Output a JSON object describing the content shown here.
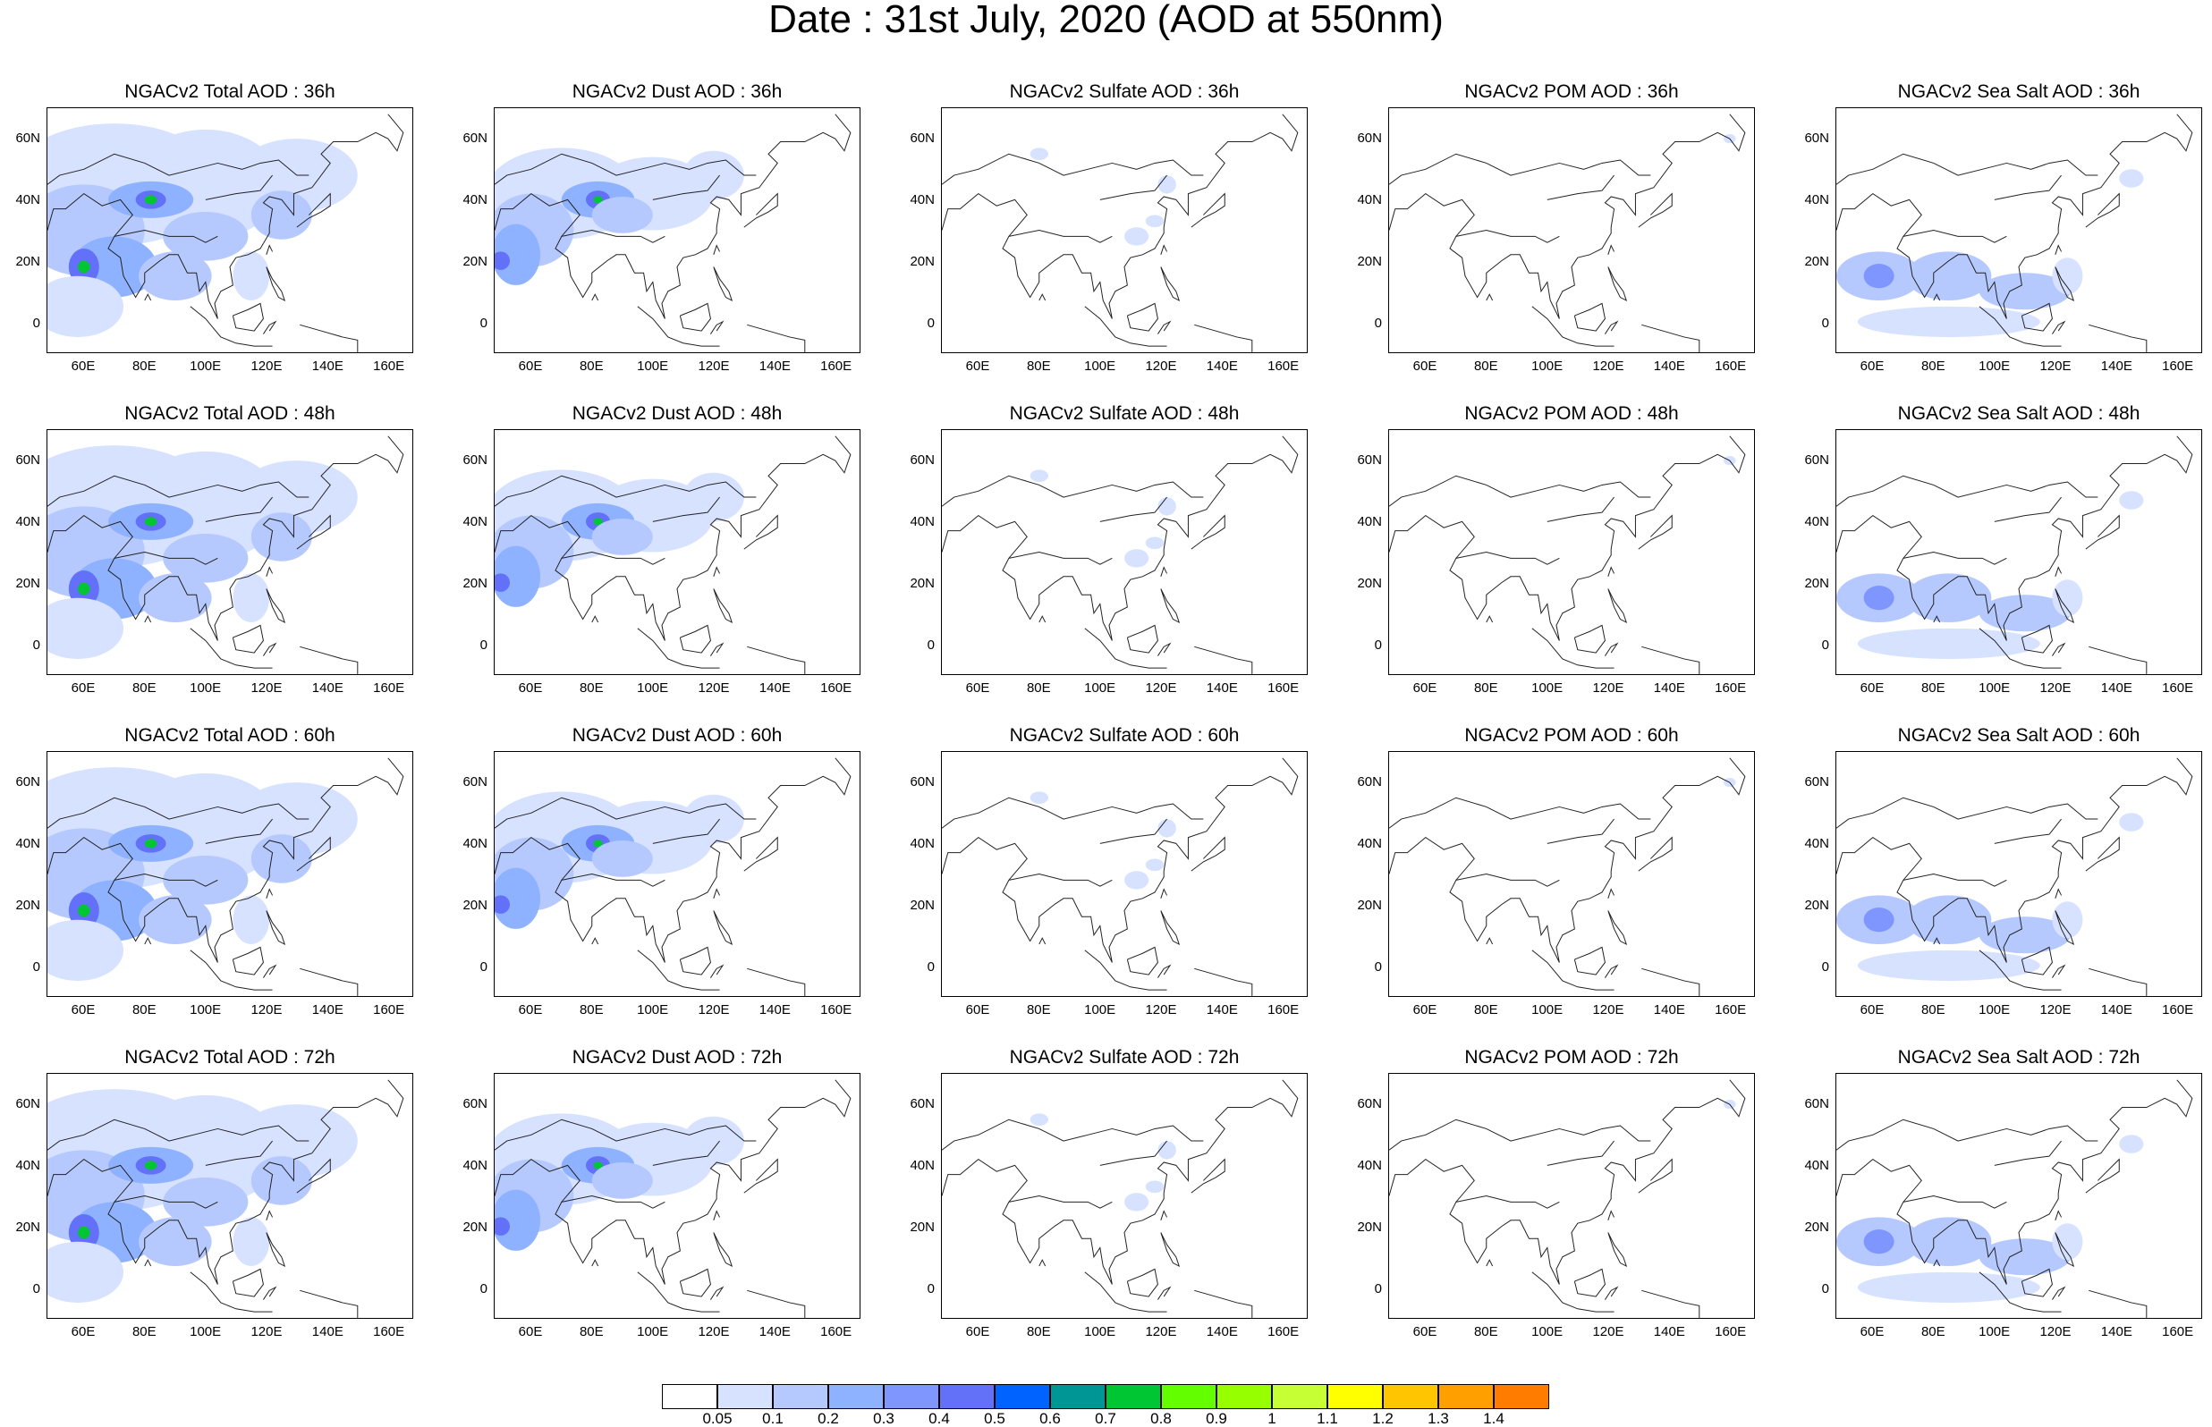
{
  "title": "Date : 31st July, 2020 (AOD at 550nm)",
  "y_ticks": [
    "60N",
    "40N",
    "20N",
    "0"
  ],
  "x_ticks": [
    "60E",
    "80E",
    "100E",
    "120E",
    "140E",
    "160E"
  ],
  "panels": [
    {
      "title": "NGACv2 Total AOD : 36h",
      "species": "total",
      "hour": "36h"
    },
    {
      "title": "NGACv2 Dust AOD : 36h",
      "species": "dust",
      "hour": "36h"
    },
    {
      "title": "NGACv2 Sulfate AOD : 36h",
      "species": "sulfate",
      "hour": "36h"
    },
    {
      "title": "NGACv2 POM AOD : 36h",
      "species": "pom",
      "hour": "36h"
    },
    {
      "title": "NGACv2 Sea Salt AOD : 36h",
      "species": "seasalt",
      "hour": "36h"
    },
    {
      "title": "NGACv2 Total AOD : 48h",
      "species": "total",
      "hour": "48h"
    },
    {
      "title": "NGACv2 Dust AOD : 48h",
      "species": "dust",
      "hour": "48h"
    },
    {
      "title": "NGACv2 Sulfate AOD : 48h",
      "species": "sulfate",
      "hour": "48h"
    },
    {
      "title": "NGACv2 POM AOD : 48h",
      "species": "pom",
      "hour": "48h"
    },
    {
      "title": "NGACv2 Sea Salt AOD : 48h",
      "species": "seasalt",
      "hour": "48h"
    },
    {
      "title": "NGACv2 Total AOD : 60h",
      "species": "total",
      "hour": "60h"
    },
    {
      "title": "NGACv2 Dust AOD : 60h",
      "species": "dust",
      "hour": "60h"
    },
    {
      "title": "NGACv2 Sulfate AOD : 60h",
      "species": "sulfate",
      "hour": "60h"
    },
    {
      "title": "NGACv2 POM AOD : 60h",
      "species": "pom",
      "hour": "60h"
    },
    {
      "title": "NGACv2 Sea Salt AOD : 60h",
      "species": "seasalt",
      "hour": "60h"
    },
    {
      "title": "NGACv2 Total AOD : 72h",
      "species": "total",
      "hour": "72h"
    },
    {
      "title": "NGACv2 Dust AOD : 72h",
      "species": "dust",
      "hour": "72h"
    },
    {
      "title": "NGACv2 Sulfate AOD : 72h",
      "species": "sulfate",
      "hour": "72h"
    },
    {
      "title": "NGACv2 POM AOD : 72h",
      "species": "pom",
      "hour": "72h"
    },
    {
      "title": "NGACv2 Sea Salt  AOD : 72h",
      "species": "seasalt",
      "hour": "72h"
    }
  ],
  "colorbar": {
    "labels": [
      "0.05",
      "0.1",
      "0.2",
      "0.3",
      "0.4",
      "0.5",
      "0.6",
      "0.7",
      "0.8",
      "0.9",
      "1",
      "1.1",
      "1.2",
      "1.3",
      "1.4"
    ],
    "colors": [
      "#ffffff",
      "#d6e2ff",
      "#b5c9ff",
      "#8eb2ff",
      "#7f96ff",
      "#6370f8",
      "#0063ff",
      "#009696",
      "#00c633",
      "#63ff00",
      "#96ff00",
      "#c6ff33",
      "#ffff00",
      "#ffc600",
      "#ffa000",
      "#ff7c00",
      "#ff1900"
    ]
  }
}
